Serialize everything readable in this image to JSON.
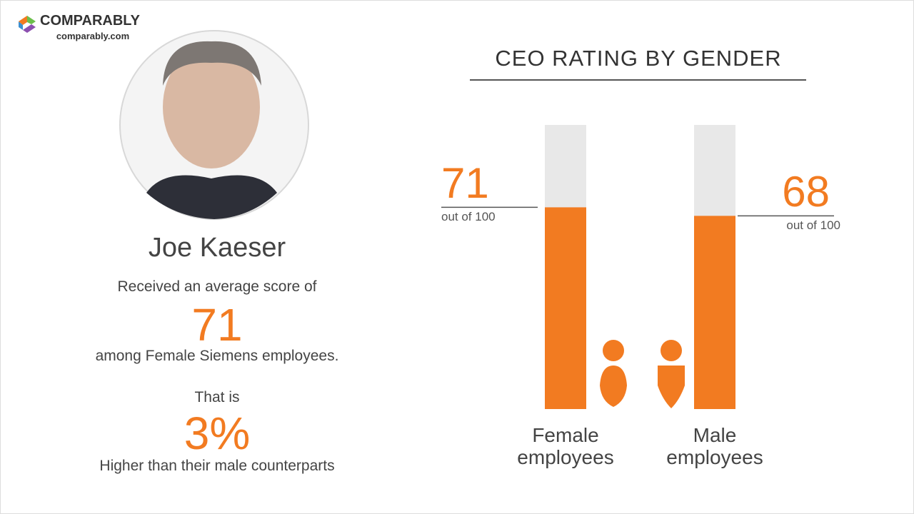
{
  "logo": {
    "name": "COMPARABLY",
    "url": "comparably.com"
  },
  "profile": {
    "name": "Joe Kaeser",
    "intro": "Received an average score of",
    "score": 71,
    "score_context": "among Female Siemens employees.",
    "comparison_intro": "That is",
    "difference": "3%",
    "comparison_text": "Higher than their male counterparts"
  },
  "chart_data": {
    "type": "bar",
    "title": "CEO RATING BY GENDER",
    "categories": [
      "Female employees",
      "Male employees"
    ],
    "values": [
      71,
      68
    ],
    "value_notes": [
      "out of 100",
      "out of 100"
    ],
    "ylim": [
      0,
      100
    ],
    "color": "#f27b21",
    "track_color": "#e8e8e8"
  }
}
